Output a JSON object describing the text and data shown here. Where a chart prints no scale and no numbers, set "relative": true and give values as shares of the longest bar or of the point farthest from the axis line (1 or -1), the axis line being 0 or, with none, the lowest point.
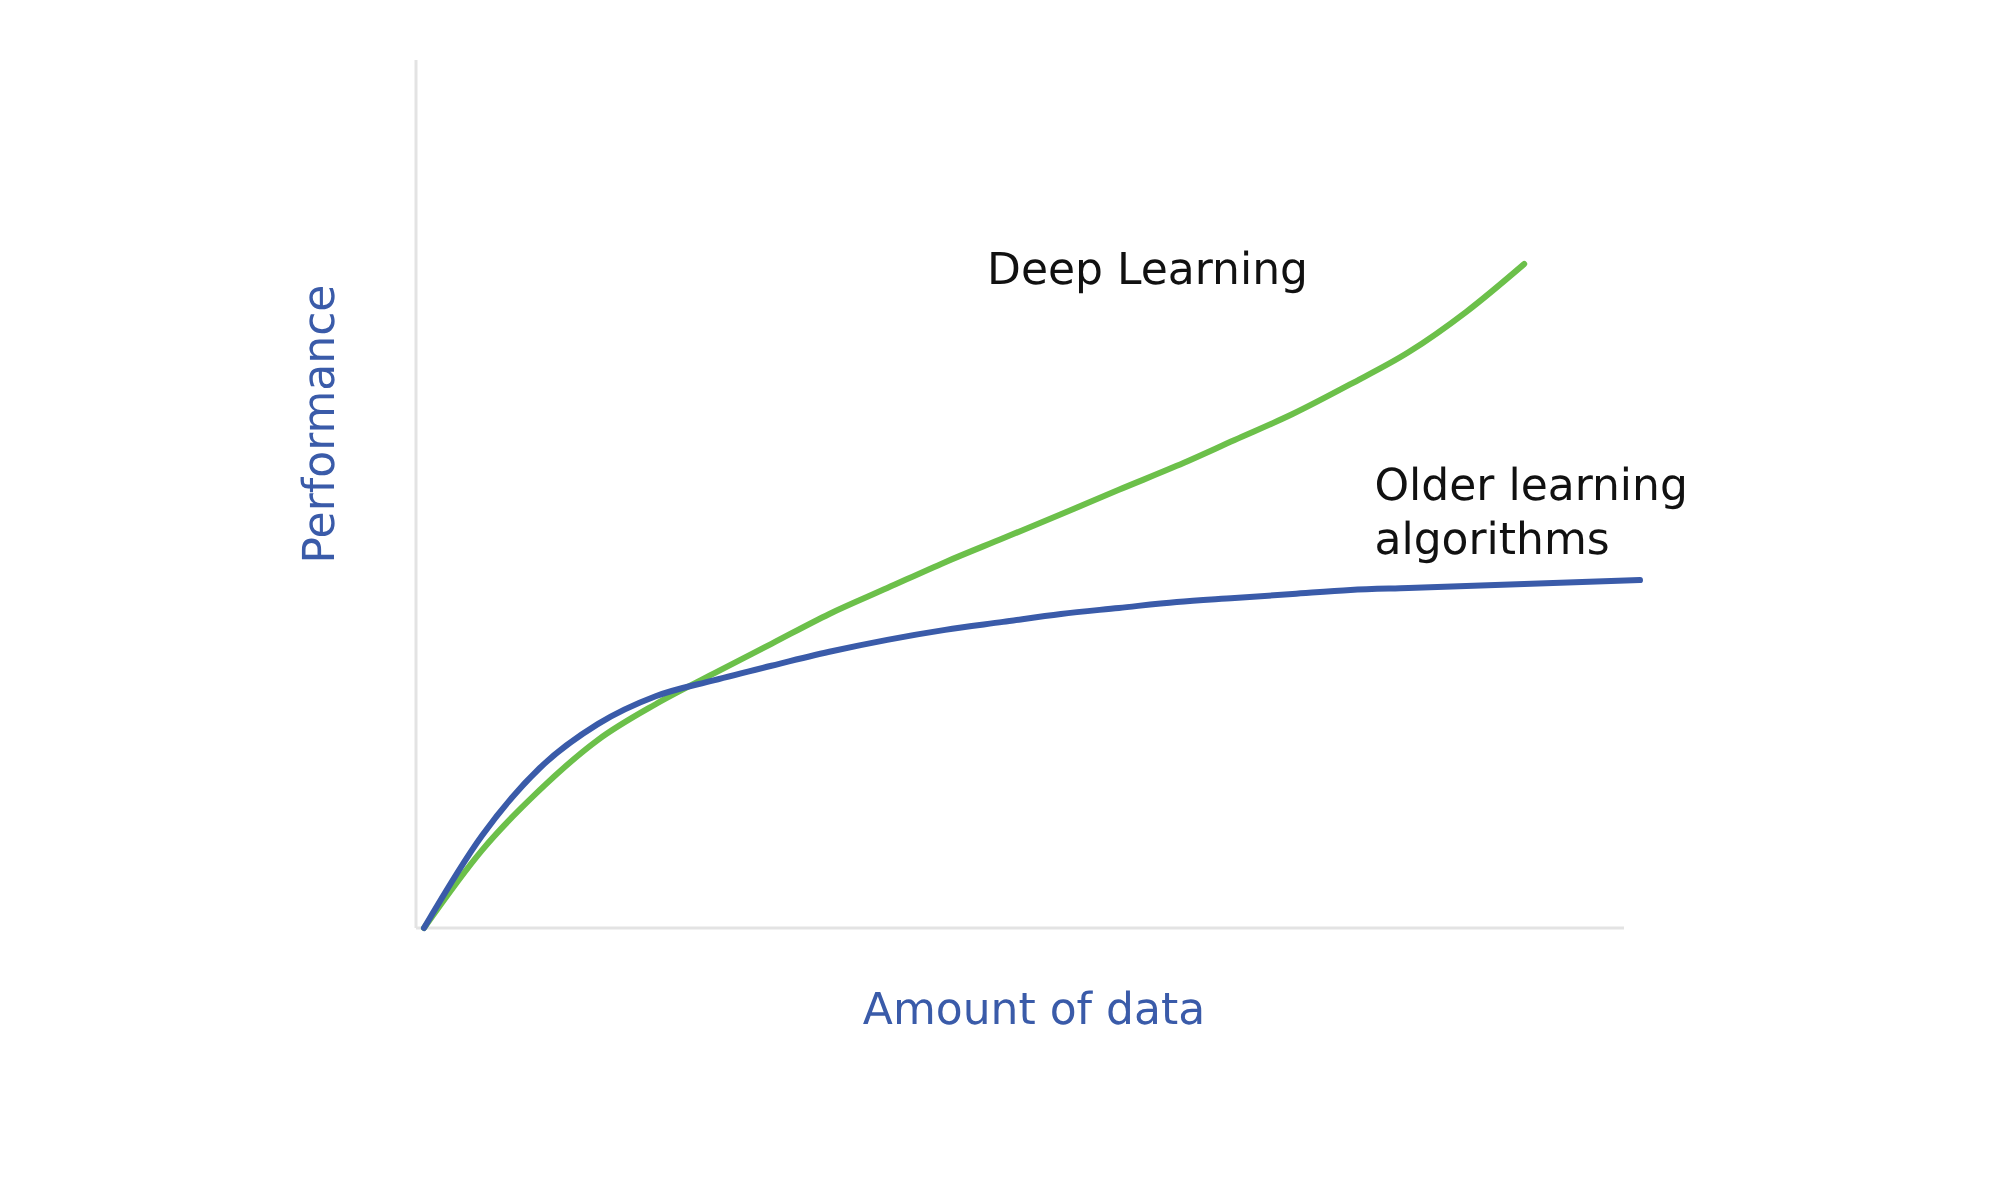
{
  "chart_data": {
    "type": "line",
    "relative": true,
    "xlabel": "Amount of data",
    "ylabel": "Performance",
    "legend": false,
    "line_style": "solid",
    "categories": [
      null,
      null,
      null,
      null,
      null,
      null,
      null,
      null,
      null,
      null,
      null,
      null,
      null,
      null,
      null,
      null,
      null,
      null,
      null,
      null,
      null,
      null
    ],
    "series": [
      {
        "name": "Deep Learning",
        "color": "#6cc04a",
        "values": [
          0,
          0.117,
          0.208,
          0.283,
          0.337,
          0.383,
          0.428,
          0.473,
          0.512,
          0.551,
          0.587,
          0.623,
          0.66,
          0.696,
          0.735,
          0.774,
          0.819,
          0.867,
          0.928,
          1,
          null,
          null
        ]
      },
      {
        "name": "Older learning algorithms",
        "color": "#3a5ba9",
        "values": [
          0,
          0.139,
          0.241,
          0.307,
          0.349,
          0.373,
          0.395,
          0.416,
          0.434,
          0.449,
          0.461,
          0.473,
          0.482,
          0.491,
          0.497,
          0.503,
          0.509,
          0.512,
          0.515,
          0.518,
          0.521,
          0.524
        ]
      }
    ]
  }
}
